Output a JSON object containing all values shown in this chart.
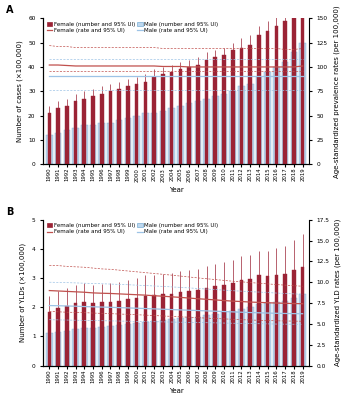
{
  "years": [
    1990,
    1991,
    1992,
    1993,
    1994,
    1995,
    1996,
    1997,
    1998,
    1999,
    2000,
    2001,
    2002,
    2003,
    2004,
    2005,
    2006,
    2007,
    2008,
    2009,
    2010,
    2011,
    2012,
    2013,
    2014,
    2015,
    2016,
    2017,
    2018,
    2019
  ],
  "panel_A": {
    "ylabel_left": "Number of cases (×100,000)",
    "ylabel_right": "Age-standardized prevalence rates (per 100,000)",
    "ylim_left": [
      0,
      60
    ],
    "ylim_right": [
      0,
      150
    ],
    "yticks_left": [
      0,
      10,
      20,
      30,
      40,
      50,
      60
    ],
    "yticks_right": [
      0,
      25,
      50,
      75,
      100,
      125,
      150
    ],
    "female_bars": [
      21,
      23,
      24,
      26,
      27,
      28,
      29,
      30,
      31,
      32,
      33,
      34,
      36,
      37,
      38,
      39,
      40,
      41,
      43,
      44,
      45,
      47,
      48,
      49,
      53,
      55,
      57,
      59,
      63,
      67
    ],
    "female_bars_lo": [
      18,
      20,
      21,
      23,
      24,
      25,
      26,
      27,
      28,
      29,
      30,
      31,
      33,
      34,
      35,
      36,
      37,
      38,
      40,
      41,
      42,
      44,
      45,
      46,
      50,
      52,
      54,
      56,
      59,
      63
    ],
    "female_bars_hi": [
      24,
      26,
      27,
      29,
      30,
      31,
      32,
      33,
      34,
      35,
      36,
      37,
      39,
      40,
      41,
      42,
      43,
      44,
      46,
      47,
      48,
      50,
      52,
      53,
      57,
      59,
      61,
      63,
      68,
      72
    ],
    "male_bars": [
      12,
      13,
      14,
      15,
      16,
      16,
      17,
      17,
      18,
      19,
      20,
      21,
      21,
      22,
      23,
      24,
      25,
      26,
      27,
      28,
      29,
      30,
      32,
      33,
      36,
      38,
      40,
      42,
      46,
      50
    ],
    "male_bars_lo": [
      10,
      11,
      12,
      13,
      14,
      14,
      15,
      15,
      16,
      17,
      18,
      19,
      19,
      20,
      21,
      22,
      23,
      24,
      25,
      26,
      27,
      28,
      30,
      31,
      34,
      36,
      38,
      40,
      44,
      48
    ],
    "male_bars_hi": [
      14,
      15,
      16,
      17,
      18,
      18,
      19,
      19,
      20,
      21,
      22,
      23,
      23,
      24,
      25,
      26,
      27,
      28,
      29,
      30,
      31,
      32,
      34,
      35,
      38,
      40,
      42,
      44,
      48,
      52
    ],
    "female_rate": [
      102,
      102,
      101.5,
      101,
      101,
      101,
      101,
      101,
      101,
      101,
      101,
      101,
      101,
      100.5,
      100.5,
      100.5,
      100,
      100,
      100,
      100,
      100,
      100,
      100,
      100,
      100,
      100,
      100,
      100,
      100,
      101
    ],
    "female_rate_lo": [
      96,
      96,
      96,
      96,
      96,
      96,
      96,
      96,
      96,
      96,
      96,
      96,
      96,
      96,
      96,
      96,
      96,
      96,
      96,
      96,
      96,
      96,
      96,
      96,
      96,
      96,
      96,
      96,
      96,
      96
    ],
    "female_rate_hi": [
      122,
      121,
      121,
      120,
      120,
      120,
      120,
      120,
      120,
      120,
      120,
      120,
      120,
      119,
      119,
      119,
      119,
      119,
      119,
      119,
      119,
      119,
      119,
      119,
      119,
      119,
      119,
      118,
      118,
      119
    ],
    "male_rate": [
      91,
      91,
      91,
      91,
      91,
      91,
      91,
      91,
      91,
      91,
      91,
      91,
      91,
      91,
      91,
      91,
      91,
      91,
      91,
      91,
      91,
      91,
      91,
      91,
      91,
      91,
      91,
      91,
      91,
      91
    ],
    "male_rate_lo": [
      76,
      76,
      76,
      76,
      76,
      76,
      76,
      76,
      76,
      76,
      76,
      76,
      76,
      76,
      76,
      76,
      76,
      76,
      76,
      76,
      76,
      76,
      76,
      76,
      76,
      76,
      76,
      76,
      76,
      76
    ],
    "male_rate_hi": [
      108,
      108,
      108,
      108,
      108,
      108,
      108,
      108,
      108,
      108,
      108,
      108,
      108,
      108,
      108,
      108,
      108,
      108,
      108,
      108,
      108,
      108,
      108,
      108,
      108,
      108,
      108,
      108,
      108,
      108
    ]
  },
  "panel_B": {
    "ylabel_left": "Number of YLDs (×100,000)",
    "ylabel_right": "Age-standardized YLD rates (per 100,000)",
    "ylim_left": [
      0,
      5
    ],
    "ylim_right": [
      0,
      17.5
    ],
    "yticks_left": [
      0,
      1,
      2,
      3,
      4,
      5
    ],
    "yticks_right": [
      0.0,
      2.5,
      5.0,
      7.5,
      10.0,
      12.5,
      15.0,
      17.5
    ],
    "female_bars": [
      1.85,
      1.97,
      2.05,
      2.13,
      2.18,
      2.13,
      2.17,
      2.18,
      2.22,
      2.27,
      2.32,
      2.4,
      2.42,
      2.44,
      2.47,
      2.52,
      2.55,
      2.59,
      2.66,
      2.72,
      2.77,
      2.83,
      2.93,
      2.98,
      3.09,
      3.08,
      3.1,
      3.14,
      3.27,
      3.38
    ],
    "female_bars_lo": [
      1.35,
      1.44,
      1.5,
      1.56,
      1.6,
      1.56,
      1.59,
      1.6,
      1.63,
      1.67,
      1.7,
      1.76,
      1.78,
      1.8,
      1.83,
      1.87,
      1.9,
      1.93,
      1.98,
      2.03,
      2.07,
      2.11,
      2.19,
      2.23,
      2.31,
      2.3,
      2.32,
      2.35,
      2.45,
      2.53
    ],
    "female_bars_hi": [
      2.4,
      2.55,
      2.65,
      2.75,
      2.82,
      2.75,
      2.8,
      2.82,
      2.87,
      2.93,
      2.99,
      3.09,
      3.11,
      3.13,
      3.17,
      3.23,
      3.26,
      3.31,
      3.4,
      3.48,
      3.54,
      3.62,
      3.74,
      3.79,
      3.94,
      3.93,
      4.02,
      4.1,
      4.32,
      4.52
    ],
    "male_bars": [
      1.1,
      1.15,
      1.2,
      1.25,
      1.29,
      1.3,
      1.33,
      1.35,
      1.38,
      1.42,
      1.46,
      1.5,
      1.53,
      1.56,
      1.58,
      1.62,
      1.65,
      1.68,
      1.73,
      1.78,
      1.82,
      1.88,
      1.95,
      2.0,
      2.1,
      2.13,
      2.18,
      2.22,
      2.32,
      2.44
    ],
    "male_bars_lo": [
      0.85,
      0.89,
      0.93,
      0.97,
      1.0,
      1.01,
      1.03,
      1.05,
      1.07,
      1.1,
      1.13,
      1.17,
      1.19,
      1.21,
      1.23,
      1.26,
      1.29,
      1.32,
      1.36,
      1.4,
      1.43,
      1.48,
      1.54,
      1.58,
      1.67,
      1.69,
      1.73,
      1.77,
      1.85,
      1.96
    ],
    "male_bars_hi": [
      1.38,
      1.44,
      1.5,
      1.56,
      1.6,
      1.62,
      1.65,
      1.68,
      1.71,
      1.76,
      1.81,
      1.86,
      1.89,
      1.93,
      1.95,
      2.0,
      2.04,
      2.07,
      2.13,
      2.19,
      2.24,
      2.31,
      2.39,
      2.45,
      2.57,
      2.6,
      2.67,
      2.72,
      2.84,
      2.99
    ],
    "female_rate": [
      9.0,
      8.95,
      8.9,
      8.85,
      8.8,
      8.72,
      8.68,
      8.65,
      8.6,
      8.55,
      8.5,
      8.45,
      8.38,
      8.32,
      8.25,
      8.18,
      8.1,
      8.02,
      7.95,
      7.88,
      7.8,
      7.73,
      7.68,
      7.62,
      7.58,
      7.54,
      7.5,
      7.47,
      7.44,
      7.42
    ],
    "female_rate_lo": [
      6.5,
      6.45,
      6.4,
      6.38,
      6.35,
      6.3,
      6.26,
      6.23,
      6.18,
      6.15,
      6.1,
      6.05,
      6.0,
      5.95,
      5.9,
      5.85,
      5.8,
      5.74,
      5.69,
      5.64,
      5.6,
      5.55,
      5.5,
      5.47,
      5.43,
      5.4,
      5.37,
      5.35,
      5.33,
      5.32
    ],
    "female_rate_hi": [
      12.0,
      12.0,
      11.9,
      11.85,
      11.8,
      11.7,
      11.6,
      11.55,
      11.45,
      11.35,
      11.25,
      11.15,
      11.05,
      10.95,
      10.85,
      10.74,
      10.63,
      10.52,
      10.42,
      10.32,
      10.22,
      10.12,
      10.05,
      9.96,
      9.88,
      9.8,
      9.72,
      9.65,
      9.58,
      9.52
    ],
    "male_rate": [
      7.2,
      7.18,
      7.15,
      7.12,
      7.08,
      7.05,
      7.02,
      6.99,
      6.95,
      6.92,
      6.88,
      6.84,
      6.8,
      6.76,
      6.72,
      6.68,
      6.64,
      6.6,
      6.56,
      6.52,
      6.48,
      6.44,
      6.4,
      6.36,
      6.33,
      6.3,
      6.27,
      6.25,
      6.23,
      6.22
    ],
    "male_rate_lo": [
      5.5,
      5.48,
      5.46,
      5.44,
      5.42,
      5.4,
      5.38,
      5.36,
      5.34,
      5.32,
      5.3,
      5.28,
      5.26,
      5.24,
      5.22,
      5.2,
      5.18,
      5.16,
      5.14,
      5.12,
      5.1,
      5.08,
      5.06,
      5.04,
      5.02,
      5.0,
      4.98,
      4.97,
      4.96,
      4.95
    ],
    "male_rate_hi": [
      10.0,
      9.98,
      9.95,
      9.92,
      9.88,
      9.85,
      9.82,
      9.78,
      9.74,
      9.7,
      9.65,
      9.6,
      9.55,
      9.5,
      9.44,
      9.38,
      9.32,
      9.25,
      9.18,
      9.12,
      9.05,
      8.98,
      8.93,
      8.86,
      8.82,
      8.76,
      8.7,
      8.65,
      8.6,
      8.55
    ]
  },
  "female_bar_color": "#9B2335",
  "male_bar_color": "#BDD7EE",
  "male_bar_edge": "#7BAFD4",
  "female_line_color": "#C0504D",
  "male_line_color": "#9DC3E6",
  "bar_width": 0.75,
  "label_fontsize": 5.0,
  "tick_fontsize": 4.2,
  "legend_fontsize": 4.0,
  "xlabel": "Year",
  "title_A": "A",
  "title_B": "B"
}
